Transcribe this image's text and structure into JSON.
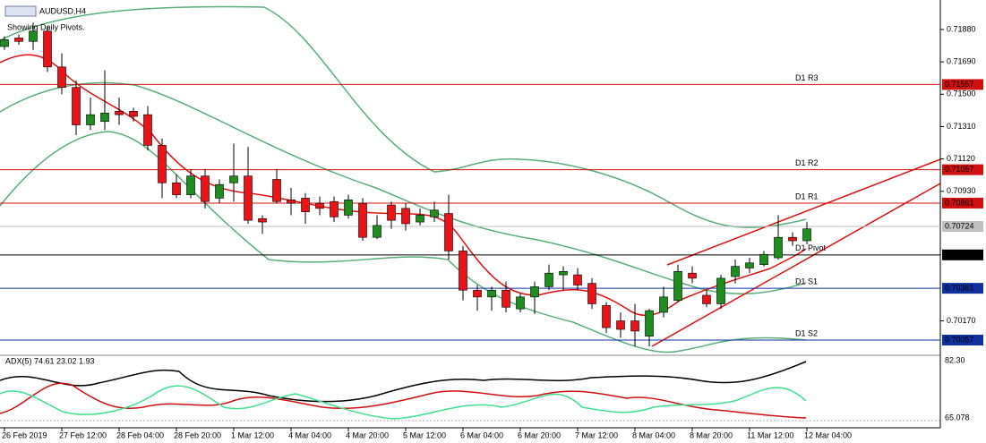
{
  "chart_data": {
    "type": "candlestick",
    "title": "AUDUSD,H4",
    "subtitle": "Showing Daily Pivots.",
    "categories": [
      "26 Feb 2019",
      null,
      null,
      null,
      "27 Feb 12:00",
      null,
      null,
      null,
      "28 Feb 04:00",
      null,
      null,
      null,
      "28 Feb 20:00",
      null,
      null,
      null,
      "1 Mar 12:00",
      null,
      null,
      null,
      "4 Mar 04:00",
      null,
      null,
      null,
      "4 Mar 20:00",
      null,
      null,
      null,
      "5 Mar 12:00",
      null,
      null,
      null,
      "6 Mar 04:00",
      null,
      null,
      null,
      "6 Mar 20:00",
      null,
      null,
      null,
      "7 Mar 12:00",
      null,
      null,
      null,
      "8 Mar 04:00",
      null,
      null,
      null,
      "8 Mar 20:00",
      null,
      null,
      null,
      "11 Mar 12:00",
      null,
      null,
      null,
      "12 Mar 04:00"
    ],
    "open": [
      0.7178,
      0.7183,
      0.7181,
      0.7187,
      0.7166,
      0.7154,
      0.7132,
      0.7134,
      0.714,
      0.714,
      0.7138,
      0.712,
      0.7098,
      0.7091,
      0.7102,
      0.7089,
      0.7098,
      0.7102,
      0.7077,
      0.71,
      0.7088,
      0.7089,
      0.7086,
      0.7087,
      0.7079,
      0.7086,
      0.7066,
      0.7085,
      0.7083,
      0.7075,
      0.7078,
      0.708,
      0.7058,
      0.7035,
      0.7031,
      0.7035,
      0.7024,
      0.7031,
      0.7037,
      0.7044,
      0.7044,
      0.7039,
      0.7026,
      0.7017,
      0.7017,
      0.7008,
      0.7022,
      0.7029,
      0.7045,
      0.7032,
      0.7027,
      0.7043,
      0.7048,
      0.705,
      0.7054,
      0.7066,
      0.7064
    ],
    "high": [
      0.7184,
      0.7185,
      0.7192,
      0.719,
      0.7174,
      0.7158,
      0.7148,
      0.7164,
      0.7148,
      0.7142,
      0.7143,
      0.7124,
      0.7103,
      0.7106,
      0.7106,
      0.71,
      0.7121,
      0.7119,
      0.7079,
      0.7106,
      0.7095,
      0.7092,
      0.709,
      0.709,
      0.7091,
      0.7089,
      0.7079,
      0.7087,
      0.7086,
      0.7083,
      0.7087,
      0.7091,
      0.7061,
      0.7038,
      0.7037,
      0.704,
      0.7033,
      0.704,
      0.705,
      0.7049,
      0.7048,
      0.7042,
      0.7028,
      0.7022,
      0.7027,
      0.7024,
      0.7037,
      0.705,
      0.7049,
      0.7035,
      0.7044,
      0.7053,
      0.7054,
      0.7058,
      0.7079,
      0.7069,
      0.7075
    ],
    "low": [
      0.7176,
      0.7179,
      0.7176,
      0.7163,
      0.715,
      0.7126,
      0.7129,
      0.7129,
      0.7132,
      0.7134,
      0.7117,
      0.7089,
      0.7089,
      0.7089,
      0.7083,
      0.7086,
      0.7087,
      0.7074,
      0.7068,
      0.7086,
      0.7079,
      0.7074,
      0.7079,
      0.7075,
      0.7077,
      0.7064,
      0.7065,
      0.7071,
      0.707,
      0.7073,
      0.7075,
      0.7053,
      0.7029,
      0.7023,
      0.7023,
      0.7022,
      0.7022,
      0.7021,
      0.7035,
      0.7035,
      0.7035,
      0.7024,
      0.701,
      0.7007,
      0.7002,
      0.7002,
      0.7019,
      0.7028,
      0.7039,
      0.7025,
      0.7024,
      0.7039,
      0.7045,
      0.7049,
      0.7053,
      0.7061,
      0.7062
    ],
    "close": [
      0.7182,
      0.7181,
      0.7187,
      0.7166,
      0.7154,
      0.7132,
      0.7138,
      0.7139,
      0.7138,
      0.7137,
      0.712,
      0.7098,
      0.7091,
      0.7102,
      0.7087,
      0.7097,
      0.7102,
      0.7076,
      0.7075,
      0.7087,
      0.7086,
      0.7081,
      0.7083,
      0.7078,
      0.7088,
      0.7066,
      0.7073,
      0.7076,
      0.7074,
      0.7079,
      0.7082,
      0.7058,
      0.7035,
      0.7031,
      0.7035,
      0.7025,
      0.7031,
      0.7037,
      0.7045,
      0.7046,
      0.7038,
      0.7027,
      0.7013,
      0.7012,
      0.7011,
      0.7023,
      0.7031,
      0.7046,
      0.7042,
      0.7027,
      0.7042,
      0.7049,
      0.7051,
      0.7056,
      0.7066,
      0.7064,
      0.7071
    ],
    "up_color": "#1e8c1e",
    "down_color": "#e8141a",
    "ylim": [
      0.69973,
      0.72053
    ],
    "yticks": [
      {
        "value": 0.7188,
        "label": "0.71880"
      },
      {
        "value": 0.7169,
        "label": "0.71690"
      },
      {
        "value": 0.715,
        "label": "0.71500"
      },
      {
        "value": 0.7131,
        "label": "0.71310"
      },
      {
        "value": 0.7112,
        "label": "0.71120"
      },
      {
        "value": 0.7093,
        "label": "0.70930"
      },
      {
        "value": 0.7017,
        "label": "0.70170"
      }
    ],
    "levels": [
      {
        "name": "D1 R3",
        "value": 0.71557,
        "label": "0.71557",
        "color": "#d01010"
      },
      {
        "name": "D1 R2",
        "value": 0.71057,
        "label": "0.71057",
        "color": "#d01010"
      },
      {
        "name": "D1 R1",
        "value": 0.70861,
        "label": "0.70861",
        "color": "#d01010"
      },
      {
        "name": "D1 Pivot",
        "value": 0.70557,
        "label": "0.70557",
        "color": "#000000"
      },
      {
        "name": "D1 S1",
        "value": 0.70361,
        "label": "0.70361",
        "color": "#1030a0"
      },
      {
        "name": "D1 S2",
        "value": 0.70057,
        "label": "0.70057",
        "color": "#1030a0"
      }
    ],
    "current_price": {
      "value": 0.70724,
      "label": "0.70724"
    },
    "indicator": {
      "title": "ADX(5) 74.61 23.02 1.93",
      "top_label": "82.30",
      "bottom_label": "65.078"
    }
  }
}
